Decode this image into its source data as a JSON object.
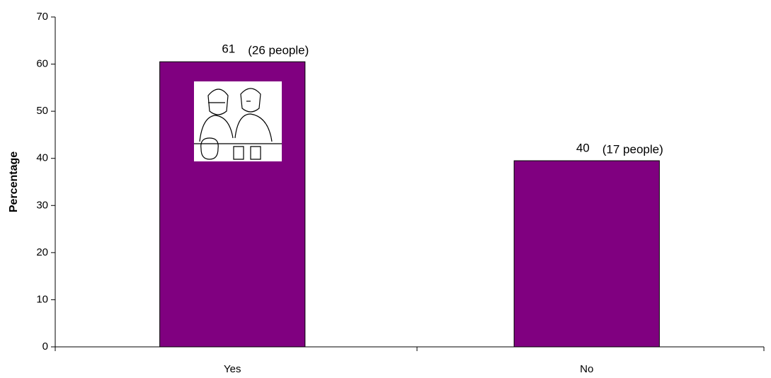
{
  "chart_data": {
    "type": "bar",
    "y_label": "Percentage",
    "categories": [
      "Yes",
      "No"
    ],
    "values": [
      60.5,
      39.5
    ],
    "value_labels": [
      "61",
      "40"
    ],
    "counts": [
      "(26 people)",
      "(17 people)"
    ],
    "color": "#800080",
    "ylim": [
      0,
      70
    ],
    "yticks": [
      0,
      10,
      20,
      30,
      40,
      50,
      60,
      70
    ],
    "grid": false
  }
}
